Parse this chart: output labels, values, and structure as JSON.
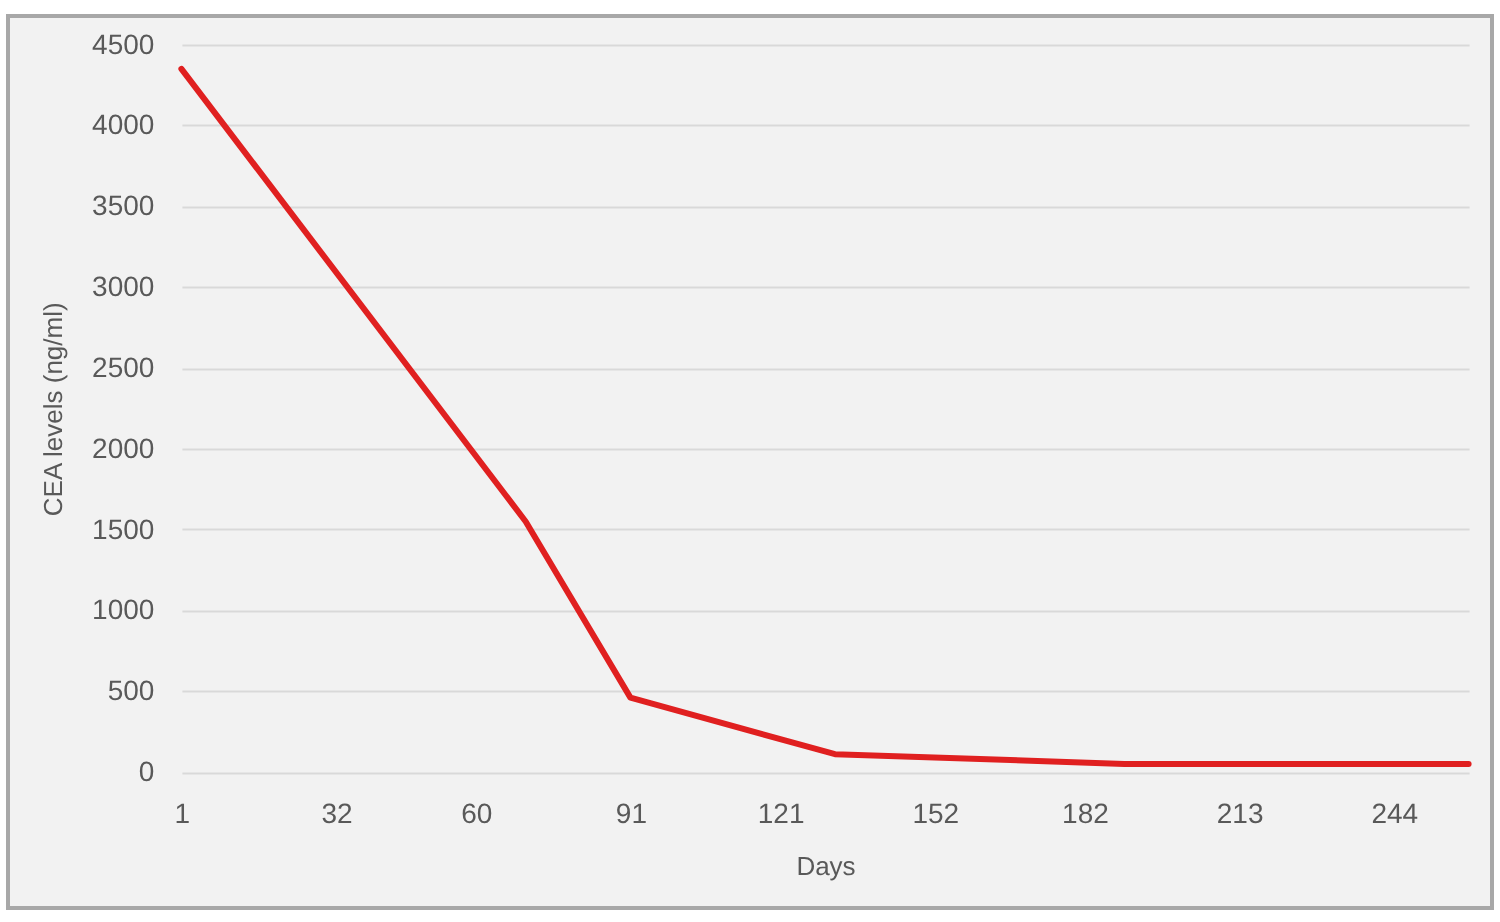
{
  "chart_data": {
    "type": "line",
    "xlabel": "Days",
    "ylabel": "CEA levels (ng/ml)",
    "x": [
      1,
      70,
      91,
      132,
      190,
      259
    ],
    "series": [
      {
        "color": "#e02020",
        "values": [
          4350,
          1550,
          460,
          110,
          50,
          50
        ]
      }
    ],
    "xlim": [
      1,
      259
    ],
    "xticks": [
      1,
      32,
      60,
      91,
      121,
      152,
      182,
      213,
      244
    ],
    "ylim": [
      0,
      4500
    ],
    "yticks": [
      0,
      500,
      1000,
      1500,
      2000,
      2500,
      3000,
      3500,
      4000,
      4500
    ],
    "grid": "y",
    "marker": "none",
    "line_style": "solid"
  }
}
